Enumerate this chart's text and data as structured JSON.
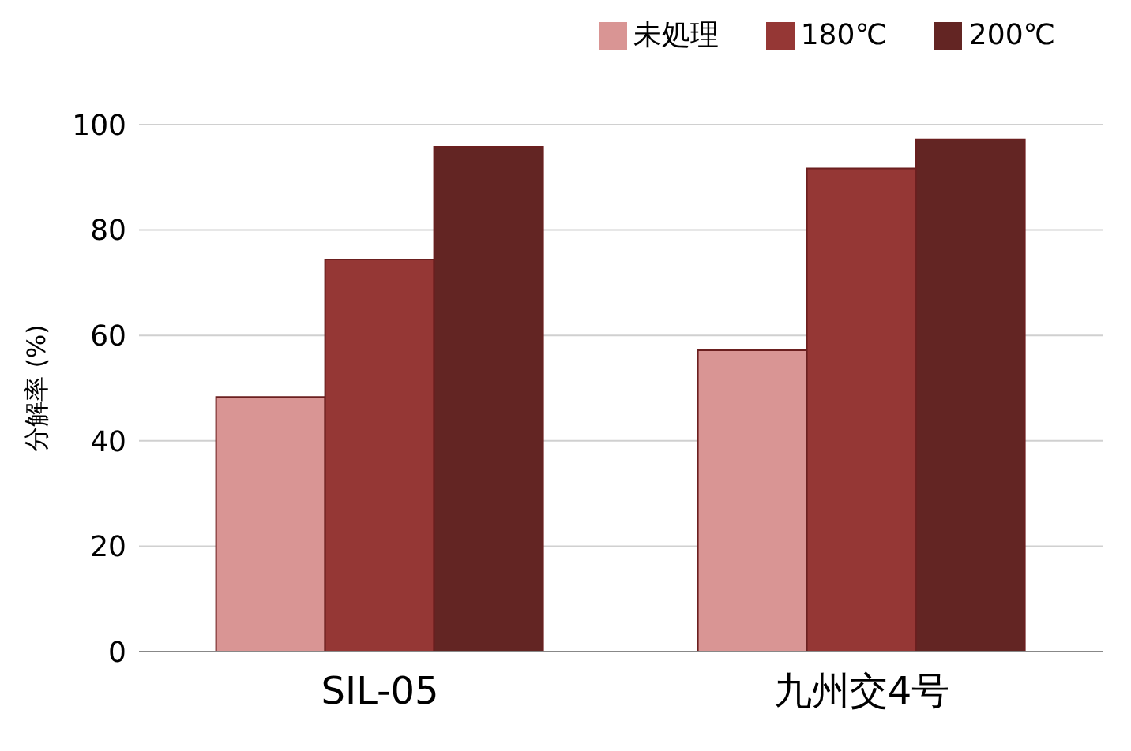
{
  "chart_data": {
    "type": "bar",
    "ylabel": "分解率 (%)",
    "categories": [
      "SIL-05",
      "九州交4号"
    ],
    "series": [
      {
        "name": "未処理",
        "color": "#d99594",
        "values": [
          48.3,
          57.2
        ]
      },
      {
        "name": "180℃",
        "color": "#953735",
        "values": [
          74.4,
          91.7
        ]
      },
      {
        "name": "200℃",
        "color": "#632523",
        "values": [
          95.8,
          97.2
        ]
      }
    ],
    "ylim": [
      0,
      100
    ],
    "yticks": [
      0,
      20,
      40,
      60,
      80,
      100
    ],
    "grid": "y",
    "legend": "top right"
  }
}
